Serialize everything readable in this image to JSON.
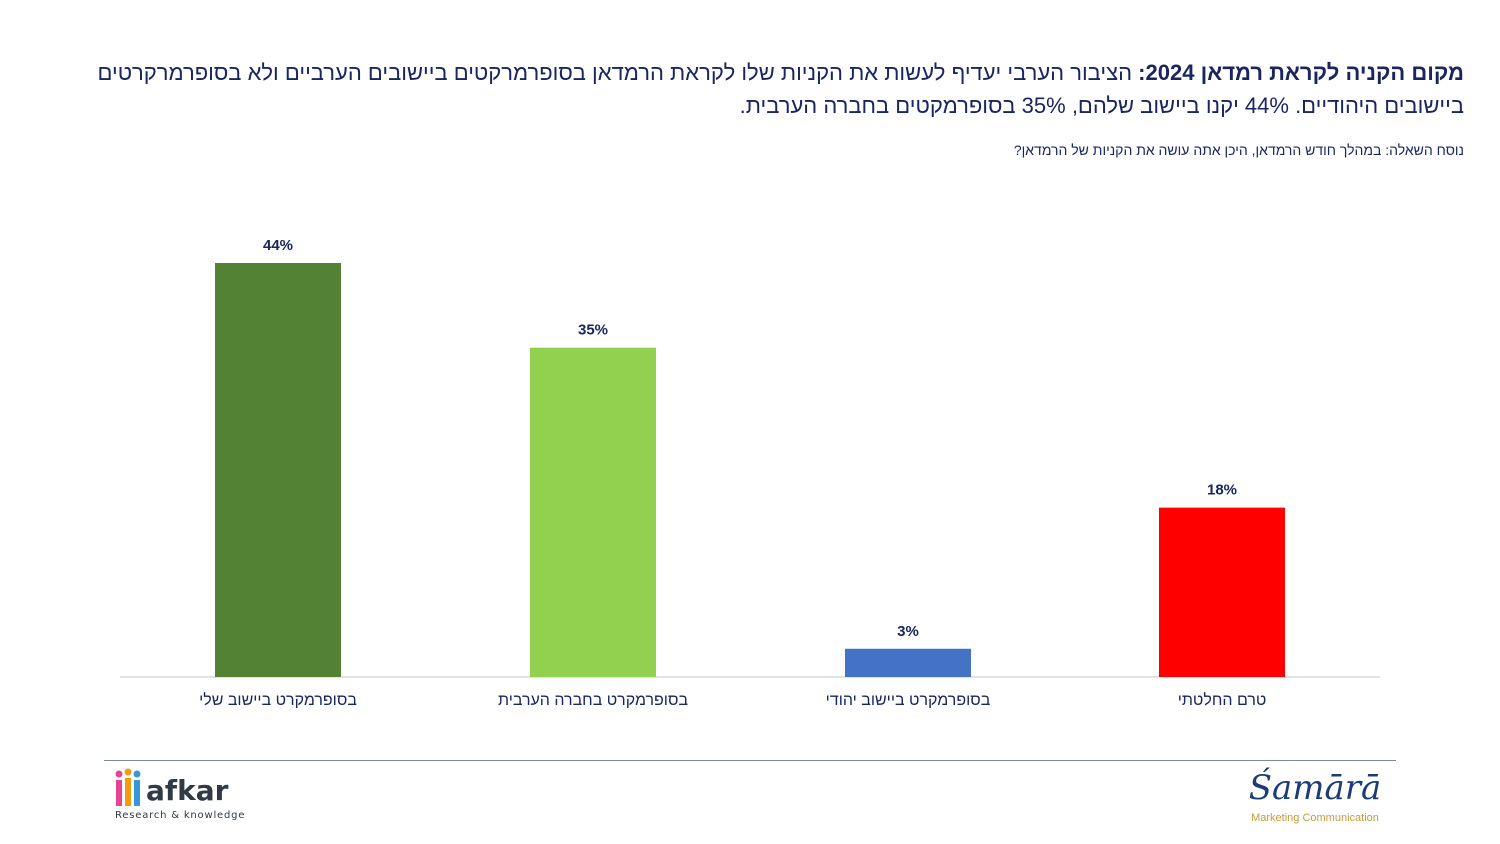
{
  "header": {
    "title_bold": "מקום הקניה לקראת רמדאן 2024:",
    "title_rest": "הציבור הערבי יעדיף לעשות את הקניות שלו לקראת הרמדאן בסופרמרקטים ביישובים הערביים ולא בסופרמרקרטים ביישובים היהודיים. 44% יקנו ביישוב שלהם, 35% בסופרמקטים בחברה הערבית.",
    "question": "נוסח השאלה: במהלך חודש הרמדאן, היכן אתה עושה את הקניות של הרמדאן?"
  },
  "chart_data": {
    "type": "bar",
    "categories": [
      "בסופרמקרט ביישוב שלי",
      "בסופרמקרט בחברה הערבית",
      "בסופרמקרט ביישוב יהודי",
      "טרם החלטתי"
    ],
    "values": [
      44,
      35,
      3,
      18
    ],
    "value_labels": [
      "44%",
      "35%",
      "3%",
      "18%"
    ],
    "colors": [
      "#548235",
      "#92d050",
      "#4472c4",
      "#ff0000"
    ],
    "unit": "%",
    "ylim": [
      0,
      44
    ],
    "grid": false,
    "legend": "none"
  },
  "footer": {
    "left_logo_word": "afkar",
    "left_logo_tagline": "Research & knowledge",
    "right_logo_word": "Śamārā",
    "right_logo_tagline": "Marketing Communication"
  },
  "colors": {
    "title": "#1b2660",
    "axis": "#d9d9d9",
    "divider": "#7f8b99",
    "samara_blue": "#1d3b78",
    "samara_gold": "#c79a3a"
  }
}
